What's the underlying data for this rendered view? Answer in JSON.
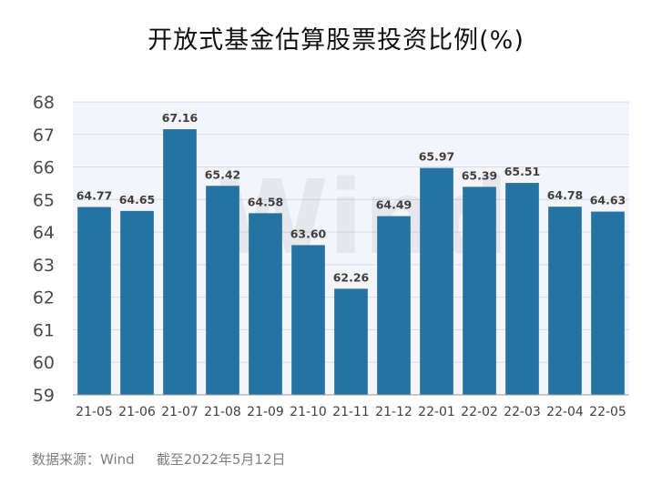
{
  "chart_data": {
    "type": "bar",
    "title": "开放式基金估算股票投资比例(%)",
    "categories": [
      "21-05",
      "21-06",
      "21-07",
      "21-08",
      "21-09",
      "21-10",
      "21-11",
      "21-12",
      "22-01",
      "22-02",
      "22-03",
      "22-04",
      "22-05"
    ],
    "values": [
      64.77,
      64.65,
      67.16,
      65.42,
      64.58,
      63.6,
      62.26,
      64.49,
      65.97,
      65.39,
      65.51,
      64.78,
      64.63
    ],
    "value_labels": [
      "64.77",
      "64.65",
      "67.16",
      "65.42",
      "64.58",
      "63.60",
      "62.26",
      "64.49",
      "65.97",
      "65.39",
      "65.51",
      "64.78",
      "64.63"
    ],
    "ylim": [
      59,
      68
    ],
    "yticks": [
      "59",
      "60",
      "61",
      "62",
      "63",
      "64",
      "65",
      "66",
      "67",
      "68"
    ],
    "grid": true,
    "bar_color": "#2473a3"
  },
  "footer": {
    "source": "数据来源：Wind",
    "date": "截至2022年5月12日"
  },
  "watermark": "Wind"
}
